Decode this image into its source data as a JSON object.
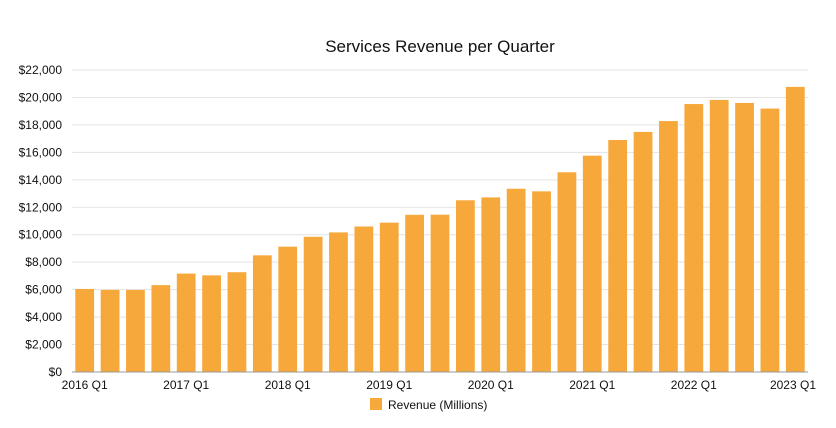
{
  "chart_data": {
    "type": "bar",
    "title": "Services Revenue per Quarter",
    "xlabel": "",
    "ylabel": "",
    "ylim": [
      0,
      22000
    ],
    "grid": true,
    "legend_position": "bottom",
    "color": "#F7A83B",
    "categories": [
      "2016 Q1",
      "2016 Q2",
      "2016 Q3",
      "2016 Q4",
      "2017 Q1",
      "2017 Q2",
      "2017 Q3",
      "2017 Q4",
      "2018 Q1",
      "2018 Q2",
      "2018 Q3",
      "2018 Q4",
      "2019 Q1",
      "2019 Q2",
      "2019 Q3",
      "2019 Q4",
      "2020 Q1",
      "2020 Q2",
      "2020 Q3",
      "2020 Q4",
      "2021 Q1",
      "2021 Q2",
      "2021 Q3",
      "2021 Q4",
      "2022 Q1",
      "2022 Q2",
      "2022 Q3",
      "2022 Q4",
      "2023 Q1"
    ],
    "x_tick_labels": [
      "2016 Q1",
      "2017 Q1",
      "2018 Q1",
      "2019 Q1",
      "2020 Q1",
      "2021 Q1",
      "2022 Q1",
      "2023 Q1"
    ],
    "y_tick_labels": [
      "$0",
      "$2,000",
      "$4,000",
      "$6,000",
      "$8,000",
      "$10,000",
      "$12,000",
      "$14,000",
      "$16,000",
      "$18,000",
      "$20,000",
      "$22,000"
    ],
    "series": [
      {
        "name": "Revenue (Millions)",
        "values": [
          6050,
          5980,
          5980,
          6330,
          7170,
          7040,
          7270,
          8500,
          9130,
          9850,
          10170,
          10600,
          10880,
          11450,
          11460,
          12510,
          12720,
          13350,
          13160,
          14550,
          15760,
          16900,
          17490,
          18280,
          19520,
          19820,
          19600,
          19190,
          20770
        ]
      }
    ]
  }
}
